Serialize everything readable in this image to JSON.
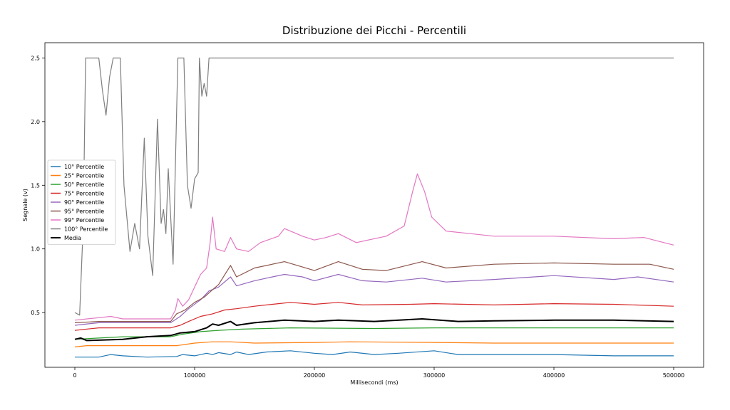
{
  "chart_data": {
    "type": "line",
    "title": "Distribuzione dei Picchi - Percentili",
    "xlabel": "Millisecondi (ms)",
    "ylabel": "Segnale (v)",
    "xlim": [
      -25000,
      525000
    ],
    "ylim": [
      0.07,
      2.62
    ],
    "xticks": [
      0,
      100000,
      200000,
      300000,
      400000,
      500000
    ],
    "yticks": [
      0.5,
      1.0,
      1.5,
      2.0,
      2.5
    ],
    "grid": false,
    "legend_position": "center-left",
    "series": [
      {
        "name": "10° Percentile",
        "color": "#1f77b4",
        "points": [
          [
            0,
            0.15
          ],
          [
            20000,
            0.15
          ],
          [
            30000,
            0.17
          ],
          [
            40000,
            0.16
          ],
          [
            60000,
            0.15
          ],
          [
            85000,
            0.155
          ],
          [
            90000,
            0.17
          ],
          [
            100000,
            0.16
          ],
          [
            110000,
            0.18
          ],
          [
            115000,
            0.17
          ],
          [
            120000,
            0.185
          ],
          [
            130000,
            0.17
          ],
          [
            135000,
            0.19
          ],
          [
            145000,
            0.17
          ],
          [
            160000,
            0.19
          ],
          [
            180000,
            0.2
          ],
          [
            200000,
            0.18
          ],
          [
            215000,
            0.17
          ],
          [
            230000,
            0.19
          ],
          [
            250000,
            0.17
          ],
          [
            270000,
            0.18
          ],
          [
            300000,
            0.2
          ],
          [
            320000,
            0.17
          ],
          [
            350000,
            0.17
          ],
          [
            400000,
            0.17
          ],
          [
            450000,
            0.16
          ],
          [
            500000,
            0.16
          ]
        ]
      },
      {
        "name": "25° Percentile",
        "color": "#ff7f0e",
        "points": [
          [
            0,
            0.23
          ],
          [
            10000,
            0.24
          ],
          [
            40000,
            0.24
          ],
          [
            85000,
            0.24
          ],
          [
            100000,
            0.26
          ],
          [
            115000,
            0.27
          ],
          [
            130000,
            0.27
          ],
          [
            150000,
            0.26
          ],
          [
            200000,
            0.265
          ],
          [
            230000,
            0.27
          ],
          [
            300000,
            0.265
          ],
          [
            350000,
            0.26
          ],
          [
            400000,
            0.26
          ],
          [
            500000,
            0.26
          ]
        ]
      },
      {
        "name": "50° Percentile",
        "color": "#2ca02c",
        "points": [
          [
            0,
            0.29
          ],
          [
            20000,
            0.3
          ],
          [
            40000,
            0.31
          ],
          [
            80000,
            0.31
          ],
          [
            90000,
            0.33
          ],
          [
            105000,
            0.35
          ],
          [
            120000,
            0.36
          ],
          [
            140000,
            0.37
          ],
          [
            180000,
            0.38
          ],
          [
            250000,
            0.375
          ],
          [
            300000,
            0.38
          ],
          [
            350000,
            0.38
          ],
          [
            400000,
            0.38
          ],
          [
            500000,
            0.38
          ]
        ]
      },
      {
        "name": "75° Percentile",
        "color": "#d62728",
        "points": [
          [
            0,
            0.36
          ],
          [
            20000,
            0.38
          ],
          [
            40000,
            0.38
          ],
          [
            80000,
            0.38
          ],
          [
            88000,
            0.4
          ],
          [
            95000,
            0.43
          ],
          [
            105000,
            0.47
          ],
          [
            115000,
            0.49
          ],
          [
            125000,
            0.52
          ],
          [
            135000,
            0.53
          ],
          [
            150000,
            0.55
          ],
          [
            170000,
            0.57
          ],
          [
            180000,
            0.58
          ],
          [
            200000,
            0.565
          ],
          [
            220000,
            0.58
          ],
          [
            240000,
            0.56
          ],
          [
            280000,
            0.565
          ],
          [
            300000,
            0.57
          ],
          [
            350000,
            0.56
          ],
          [
            400000,
            0.57
          ],
          [
            450000,
            0.565
          ],
          [
            500000,
            0.55
          ]
        ]
      },
      {
        "name": "90° Percentile",
        "color": "#9467bd",
        "points": [
          [
            0,
            0.4
          ],
          [
            20000,
            0.42
          ],
          [
            40000,
            0.42
          ],
          [
            80000,
            0.42
          ],
          [
            88000,
            0.47
          ],
          [
            95000,
            0.53
          ],
          [
            105000,
            0.6
          ],
          [
            112000,
            0.67
          ],
          [
            120000,
            0.7
          ],
          [
            130000,
            0.78
          ],
          [
            135000,
            0.71
          ],
          [
            150000,
            0.75
          ],
          [
            165000,
            0.78
          ],
          [
            175000,
            0.8
          ],
          [
            190000,
            0.78
          ],
          [
            200000,
            0.75
          ],
          [
            220000,
            0.8
          ],
          [
            240000,
            0.75
          ],
          [
            260000,
            0.74
          ],
          [
            290000,
            0.77
          ],
          [
            310000,
            0.74
          ],
          [
            350000,
            0.76
          ],
          [
            400000,
            0.79
          ],
          [
            450000,
            0.76
          ],
          [
            470000,
            0.78
          ],
          [
            500000,
            0.74
          ]
        ]
      },
      {
        "name": "95° Percentile",
        "color": "#8c564b",
        "points": [
          [
            0,
            0.42
          ],
          [
            20000,
            0.43
          ],
          [
            40000,
            0.43
          ],
          [
            80000,
            0.43
          ],
          [
            85000,
            0.49
          ],
          [
            92000,
            0.52
          ],
          [
            100000,
            0.58
          ],
          [
            108000,
            0.62
          ],
          [
            115000,
            0.68
          ],
          [
            120000,
            0.72
          ],
          [
            130000,
            0.87
          ],
          [
            135000,
            0.78
          ],
          [
            150000,
            0.85
          ],
          [
            175000,
            0.9
          ],
          [
            200000,
            0.83
          ],
          [
            220000,
            0.9
          ],
          [
            240000,
            0.84
          ],
          [
            260000,
            0.83
          ],
          [
            290000,
            0.9
          ],
          [
            310000,
            0.85
          ],
          [
            350000,
            0.88
          ],
          [
            400000,
            0.89
          ],
          [
            450000,
            0.88
          ],
          [
            480000,
            0.88
          ],
          [
            500000,
            0.84
          ]
        ]
      },
      {
        "name": "99° Percentile",
        "color": "#e377c2",
        "points": [
          [
            0,
            0.44
          ],
          [
            20000,
            0.46
          ],
          [
            30000,
            0.47
          ],
          [
            40000,
            0.45
          ],
          [
            80000,
            0.45
          ],
          [
            84000,
            0.52
          ],
          [
            86000,
            0.61
          ],
          [
            90000,
            0.55
          ],
          [
            95000,
            0.6
          ],
          [
            100000,
            0.7
          ],
          [
            105000,
            0.8
          ],
          [
            110000,
            0.85
          ],
          [
            113000,
            1.05
          ],
          [
            115000,
            1.25
          ],
          [
            118000,
            1.0
          ],
          [
            125000,
            0.98
          ],
          [
            130000,
            1.09
          ],
          [
            135000,
            1.0
          ],
          [
            145000,
            0.98
          ],
          [
            155000,
            1.05
          ],
          [
            170000,
            1.1
          ],
          [
            175000,
            1.16
          ],
          [
            190000,
            1.1
          ],
          [
            200000,
            1.07
          ],
          [
            210000,
            1.09
          ],
          [
            220000,
            1.12
          ],
          [
            235000,
            1.05
          ],
          [
            260000,
            1.1
          ],
          [
            275000,
            1.18
          ],
          [
            282000,
            1.45
          ],
          [
            286000,
            1.59
          ],
          [
            292000,
            1.45
          ],
          [
            298000,
            1.25
          ],
          [
            310000,
            1.14
          ],
          [
            330000,
            1.12
          ],
          [
            350000,
            1.1
          ],
          [
            400000,
            1.1
          ],
          [
            450000,
            1.08
          ],
          [
            475000,
            1.09
          ],
          [
            500000,
            1.03
          ]
        ]
      },
      {
        "name": "100° Percentile",
        "color": "#7f7f7f",
        "points": [
          [
            0,
            0.5
          ],
          [
            4000,
            0.48
          ],
          [
            7000,
            1.2
          ],
          [
            9000,
            2.5
          ],
          [
            20000,
            2.5
          ],
          [
            23000,
            2.25
          ],
          [
            26000,
            2.05
          ],
          [
            29000,
            2.35
          ],
          [
            32000,
            2.5
          ],
          [
            38000,
            2.5
          ],
          [
            41000,
            1.5
          ],
          [
            46000,
            0.98
          ],
          [
            50000,
            1.2
          ],
          [
            54000,
            1.0
          ],
          [
            58000,
            1.87
          ],
          [
            61000,
            1.1
          ],
          [
            65000,
            0.79
          ],
          [
            69000,
            2.02
          ],
          [
            72000,
            1.2
          ],
          [
            74000,
            1.31
          ],
          [
            76000,
            1.12
          ],
          [
            78000,
            1.63
          ],
          [
            82000,
            0.88
          ],
          [
            86000,
            2.5
          ],
          [
            91000,
            2.5
          ],
          [
            94000,
            1.5
          ],
          [
            97000,
            1.32
          ],
          [
            100000,
            1.55
          ],
          [
            103000,
            1.6
          ],
          [
            104000,
            2.5
          ],
          [
            106000,
            2.2
          ],
          [
            108000,
            2.3
          ],
          [
            110000,
            2.2
          ],
          [
            112000,
            2.5
          ],
          [
            500000,
            2.5
          ]
        ]
      },
      {
        "name": "Media",
        "color": "#000000",
        "points": [
          [
            0,
            0.29
          ],
          [
            5000,
            0.3
          ],
          [
            10000,
            0.28
          ],
          [
            40000,
            0.29
          ],
          [
            60000,
            0.31
          ],
          [
            80000,
            0.32
          ],
          [
            88000,
            0.34
          ],
          [
            100000,
            0.35
          ],
          [
            110000,
            0.38
          ],
          [
            115000,
            0.41
          ],
          [
            120000,
            0.4
          ],
          [
            130000,
            0.43
          ],
          [
            135000,
            0.4
          ],
          [
            150000,
            0.42
          ],
          [
            175000,
            0.44
          ],
          [
            200000,
            0.43
          ],
          [
            220000,
            0.44
          ],
          [
            250000,
            0.43
          ],
          [
            290000,
            0.45
          ],
          [
            320000,
            0.43
          ],
          [
            350000,
            0.435
          ],
          [
            400000,
            0.44
          ],
          [
            450000,
            0.44
          ],
          [
            500000,
            0.43
          ]
        ]
      }
    ]
  }
}
